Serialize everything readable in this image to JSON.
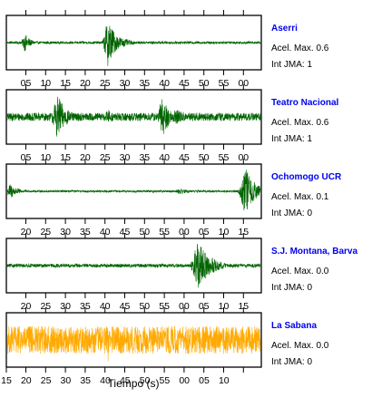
{
  "chart_data": {
    "type": "line",
    "title": "",
    "xlabel": "Tiempo (s)",
    "ylabel": "",
    "grid": false,
    "panels": [
      {
        "station": "Aserri",
        "accel_label": "Acel. Max. 0.6",
        "int_label": "Int JMA: 1",
        "color": "#006400",
        "x_ticks": [
          "05",
          "10",
          "15",
          "20",
          "25",
          "30",
          "35",
          "40",
          "45",
          "50",
          "55",
          "00"
        ],
        "noise_level": 0.05,
        "events": [
          {
            "t": 5.0,
            "amp": 0.35,
            "width": 1.5
          },
          {
            "t": 28.0,
            "amp": 0.95,
            "width": 2.0
          },
          {
            "t": 31.0,
            "amp": 0.25,
            "width": 3.0
          }
        ]
      },
      {
        "station": "Teatro Nacional",
        "accel_label": "Acel. Max. 0.6",
        "int_label": "Int JMA: 1",
        "color": "#006400",
        "x_ticks": [
          "05",
          "10",
          "15",
          "20",
          "25",
          "30",
          "35",
          "40",
          "45",
          "50",
          "55",
          "00"
        ],
        "noise_level": 0.16,
        "events": [
          {
            "t": 14.0,
            "amp": 0.85,
            "width": 2.5
          },
          {
            "t": 28.0,
            "amp": 0.3,
            "width": 2.0
          },
          {
            "t": 43.0,
            "amp": 0.8,
            "width": 2.0
          },
          {
            "t": 47.0,
            "amp": 0.3,
            "width": 4.0
          }
        ]
      },
      {
        "station": "Ochomogo UCR",
        "accel_label": "Acel. Max. 0.1",
        "int_label": "Int JMA: 0",
        "color": "#006400",
        "x_ticks": [
          "20",
          "25",
          "30",
          "35",
          "40",
          "45",
          "50",
          "55",
          "00",
          "05",
          "10",
          "15"
        ],
        "noise_level": 0.04,
        "events": [
          {
            "t": 1.0,
            "amp": 0.3,
            "width": 2.0
          },
          {
            "t": 48.0,
            "amp": 0.12,
            "width": 2.5
          },
          {
            "t": 66.0,
            "amp": 0.95,
            "width": 2.5
          }
        ]
      },
      {
        "station": "S.J. Montana, Barva",
        "accel_label": "Acel. Max. 0.0",
        "int_label": "Int JMA: 0",
        "color": "#006400",
        "x_ticks": [
          "20",
          "25",
          "30",
          "35",
          "40",
          "45",
          "50",
          "55",
          "00",
          "05",
          "10",
          "15"
        ],
        "noise_level": 0.07,
        "events": [
          {
            "t": 53.0,
            "amp": 0.95,
            "width": 3.0
          },
          {
            "t": 57.0,
            "amp": 0.3,
            "width": 3.0
          }
        ]
      },
      {
        "station": "La Sabana",
        "accel_label": "Acel. Max. 0.0",
        "int_label": "Int JMA: 0",
        "color": "#ffaa00",
        "x_ticks": [
          "15",
          "20",
          "25",
          "30",
          "35",
          "40",
          "45",
          "50",
          "55",
          "00",
          "05",
          "10"
        ],
        "noise_level": 0.55,
        "events": [
          {
            "t": 28.0,
            "amp": 0.95,
            "width": 1.0
          }
        ]
      }
    ]
  }
}
